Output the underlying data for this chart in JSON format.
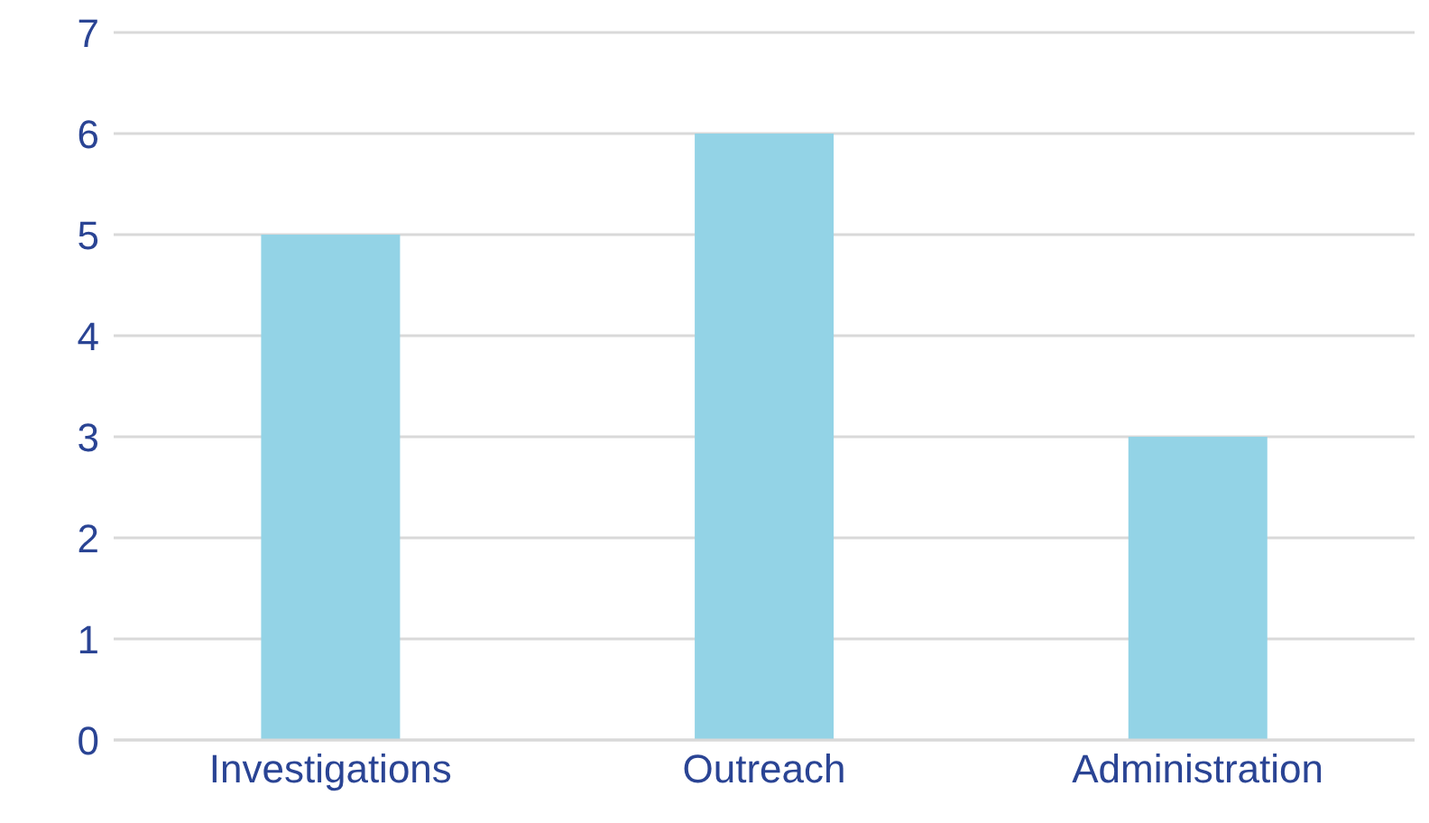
{
  "chart_data": {
    "type": "bar",
    "categories": [
      "Investigations",
      "Outreach",
      "Administration"
    ],
    "values": [
      5,
      6,
      3
    ],
    "color": "#93d3e6",
    "ylim": [
      0,
      7
    ],
    "yticks": [
      0,
      1,
      2,
      3,
      4,
      5,
      6,
      7
    ],
    "grid": "y"
  }
}
